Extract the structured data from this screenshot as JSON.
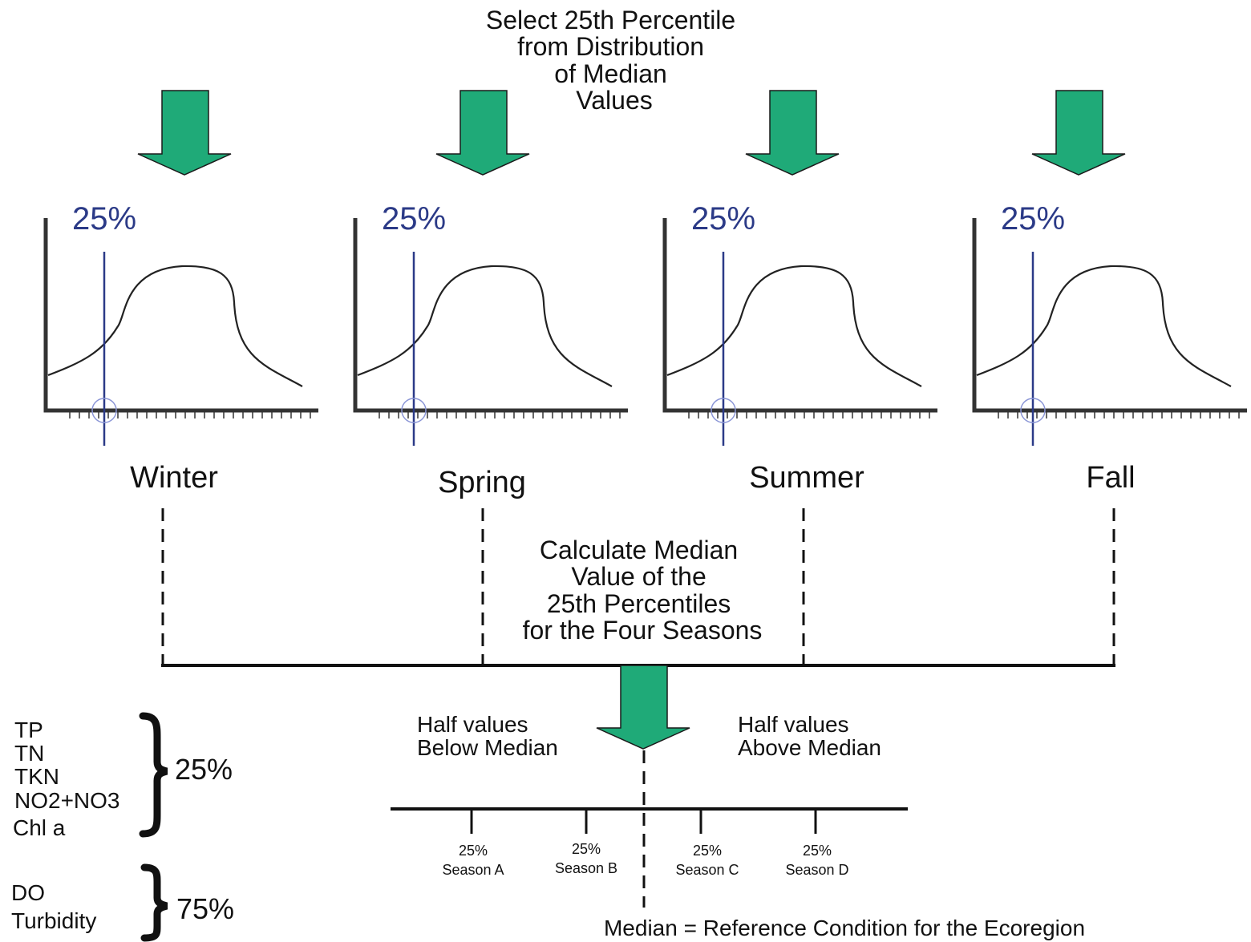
{
  "top_instruction": [
    "Select 25th Percentile",
    "from Distribution",
    "of Median",
    "Values"
  ],
  "percent_marker": "25%",
  "seasons": [
    {
      "name": "Winter",
      "marker_label": "25%"
    },
    {
      "name": "Spring",
      "marker_label": "25%"
    },
    {
      "name": "Summer",
      "marker_label": "25%"
    },
    {
      "name": "Fall",
      "marker_label": "25%"
    }
  ],
  "middle_instruction": [
    "Calculate Median",
    "Value of the",
    "25th Percentiles",
    "for the Four Seasons"
  ],
  "half_below": [
    "Half values",
    "Below Median"
  ],
  "half_above": [
    "Half values",
    "Above Median"
  ],
  "scale_ticks": [
    {
      "pct": "25%",
      "season": "Season A"
    },
    {
      "pct": "25%",
      "season": "Season B"
    },
    {
      "pct": "25%",
      "season": "Season C"
    },
    {
      "pct": "25%",
      "season": "Season D"
    }
  ],
  "median_caption": "Median = Reference Condition for the Ecoregion",
  "groups": [
    {
      "parameters": [
        "TP",
        "TN",
        "TKN",
        "NO2+NO3",
        "Chl a"
      ],
      "percentile": "25%"
    },
    {
      "parameters": [
        "DO",
        "Turbidity"
      ],
      "percentile": "75%"
    }
  ],
  "colors": {
    "arrow_fill": "#1faa78",
    "arrow_stroke": "#1a1a1a",
    "marker_line": "#2b3a87",
    "marker_circle": "#8a95d6",
    "axis": "#333333"
  }
}
